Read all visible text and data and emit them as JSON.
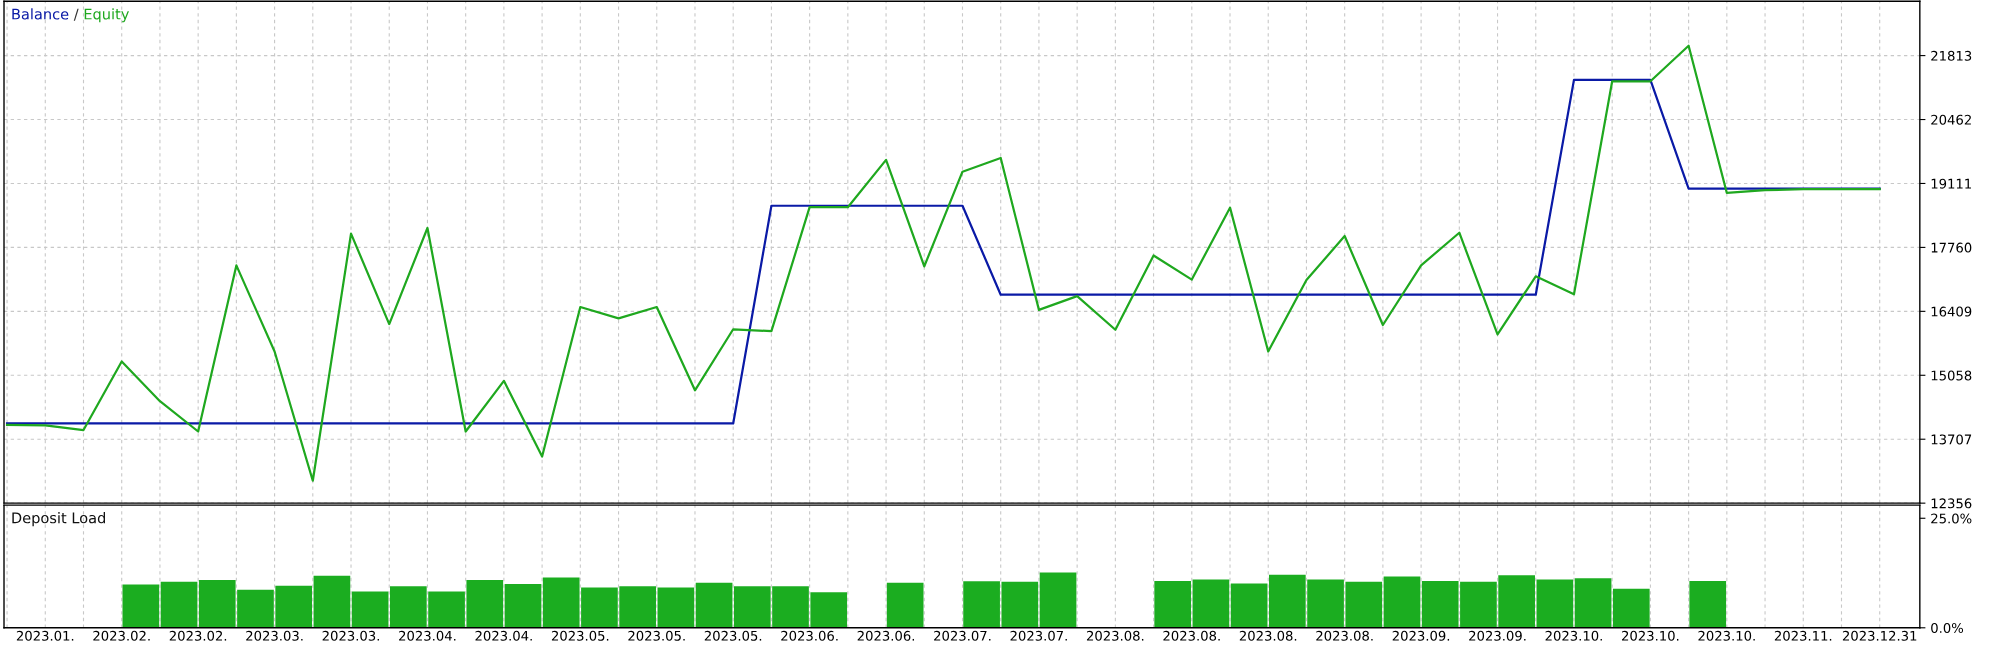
{
  "chart_data": [
    {
      "type": "line",
      "categories": [
        null,
        "2023.01.",
        null,
        "2023.02.",
        null,
        "2023.02.",
        null,
        "2023.03.",
        null,
        "2023.03.",
        null,
        "2023.04.",
        null,
        "2023.04.",
        null,
        "2023.05.",
        null,
        "2023.05.",
        null,
        "2023.05.",
        null,
        "2023.06.",
        null,
        "2023.06.",
        null,
        "2023.07.",
        null,
        "2023.07.",
        null,
        "2023.08.",
        null,
        "2023.08.",
        null,
        "2023.08.",
        null,
        "2023.08.",
        null,
        "2023.09.",
        null,
        "2023.09.",
        null,
        "2023.10.",
        null,
        "2023.10.",
        null,
        "2023.10.",
        null,
        "2023.11.",
        null,
        "2023.12.31"
      ],
      "series": [
        {
          "name": "Balance",
          "color": "#0a1aa6",
          "values": [
            14040,
            14040,
            14040,
            14040,
            14040,
            14040,
            14040,
            14040,
            14040,
            14040,
            14040,
            14040,
            14040,
            14040,
            14040,
            14040,
            14040,
            14040,
            14040,
            14040,
            18640,
            18640,
            18640,
            18640,
            18640,
            18640,
            16760,
            16760,
            16760,
            16760,
            16760,
            16760,
            16760,
            16760,
            16760,
            16760,
            16760,
            16760,
            16760,
            16760,
            16760,
            21300,
            21300,
            21300,
            19000,
            19000,
            19000,
            19000,
            19000,
            19000
          ]
        },
        {
          "name": "Equity",
          "color": "#1fa81f",
          "values": [
            14010,
            14000,
            13900,
            15350,
            14510,
            13870,
            17380,
            15560,
            12830,
            18050,
            16140,
            18170,
            13870,
            14940,
            13340,
            16500,
            16260,
            16500,
            14740,
            16030,
            15990,
            18610,
            18610,
            19610,
            17360,
            19360,
            19650,
            16440,
            16730,
            16020,
            17590,
            17080,
            18600,
            15560,
            17070,
            18000,
            16120,
            17380,
            18070,
            15920,
            17150,
            16770,
            21270,
            21270,
            22020,
            18910,
            18970,
            18990,
            18990,
            18990
          ]
        }
      ],
      "ylim": [
        12356,
        22960
      ],
      "yticks": [
        12356,
        13707,
        15058,
        16409,
        17760,
        19111,
        20462,
        21813
      ],
      "grid": true,
      "legend": "top left",
      "tick_labels": "y",
      "line_style": "solid",
      "marker": "none",
      "annotations": [
        "/"
      ]
    },
    {
      "type": "bar",
      "categories": [
        null,
        "2023.01.",
        null,
        "2023.02.",
        null,
        "2023.02.",
        null,
        "2023.03.",
        null,
        "2023.03.",
        null,
        "2023.04.",
        null,
        "2023.04.",
        null,
        "2023.05.",
        null,
        "2023.05.",
        null,
        "2023.05.",
        null,
        "2023.06.",
        null,
        "2023.06.",
        null,
        "2023.07.",
        null,
        "2023.07.",
        null,
        "2023.08.",
        null,
        "2023.08.",
        null,
        "2023.08.",
        null,
        "2023.08.",
        null,
        "2023.09.",
        null,
        "2023.09.",
        null,
        "2023.10.",
        null,
        "2023.10.",
        null,
        "2023.10.",
        null,
        "2023.11.",
        null,
        "2023.12.31"
      ],
      "series": [
        {
          "name": "Deposit Load",
          "color": "#1bad20",
          "values": [
            null,
            null,
            null,
            9.9,
            10.5,
            10.9,
            8.7,
            9.6,
            11.9,
            8.3,
            9.5,
            8.3,
            10.9,
            10.0,
            11.5,
            9.2,
            9.5,
            9.2,
            10.3,
            9.5,
            9.5,
            8.1,
            null,
            10.3,
            null,
            10.6,
            10.5,
            12.6,
            null,
            null,
            10.7,
            11.0,
            10.1,
            12.1,
            11.0,
            10.5,
            11.7,
            10.7,
            10.5,
            12.0,
            11.0,
            11.3,
            8.9,
            null,
            10.7,
            null,
            null,
            null,
            null,
            null
          ]
        }
      ],
      "ylim": [
        0,
        28
      ],
      "yticks": [
        {
          "value": 0,
          "label": "0.0%"
        },
        {
          "value": 25,
          "label": "25.0%"
        }
      ],
      "grid": "x",
      "legend": "top left"
    }
  ]
}
